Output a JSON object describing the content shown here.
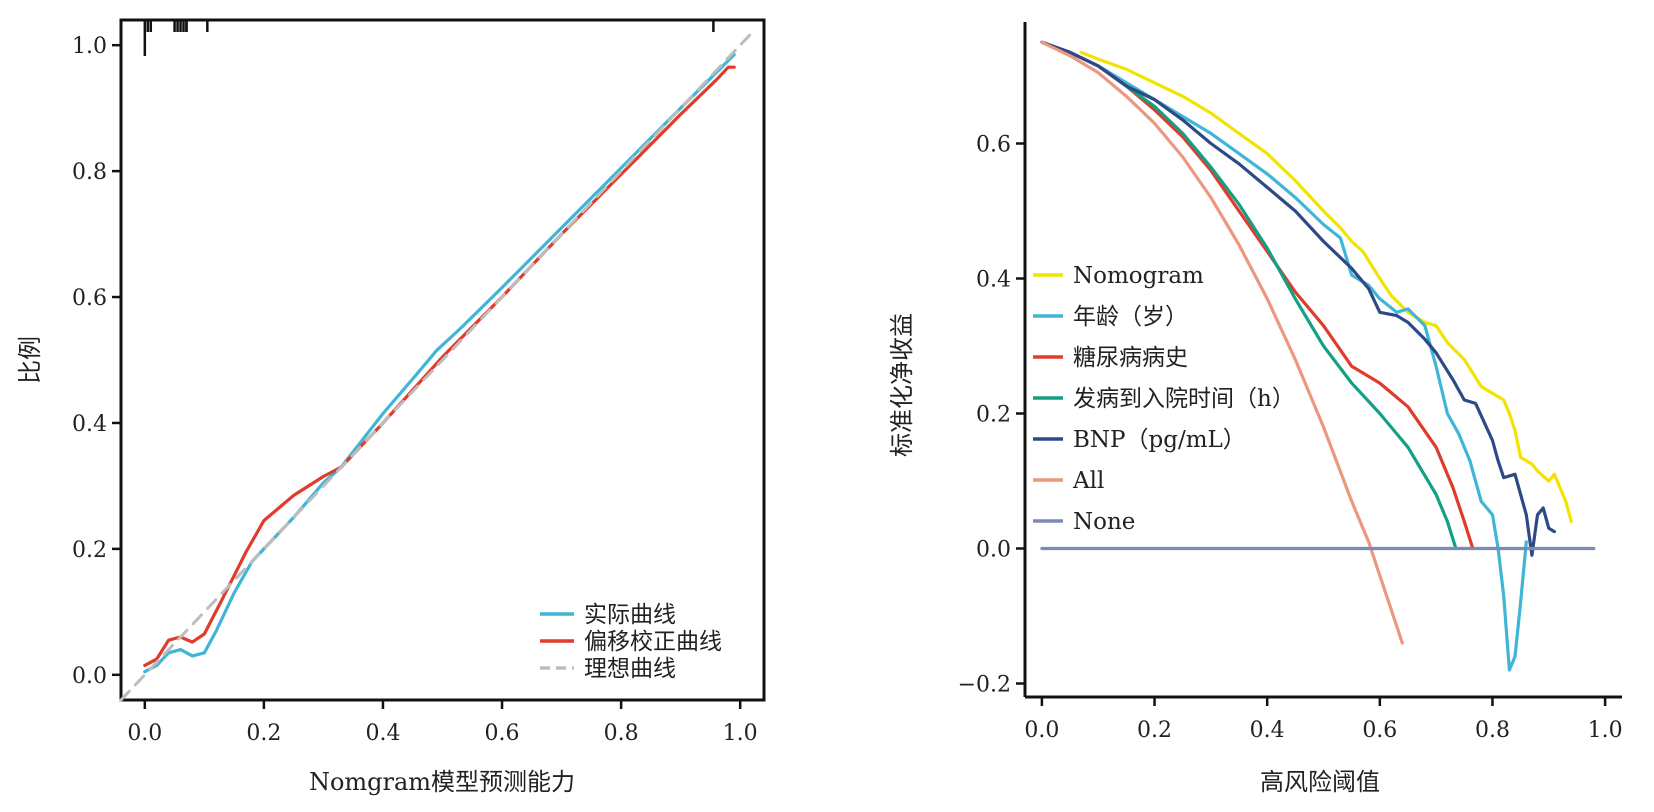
{
  "chart_data": [
    {
      "type": "line",
      "id": "calibration",
      "xlabel": "Nomgram模型预测能力",
      "ylabel": "比例",
      "xlim": [
        -0.04,
        1.04
      ],
      "ylim": [
        -0.04,
        1.04
      ],
      "xticks": [
        "0.0",
        "0.2",
        "0.4",
        "0.6",
        "0.8",
        "1.0"
      ],
      "xtick_values": [
        0,
        0.2,
        0.4,
        0.6,
        0.8,
        1.0
      ],
      "yticks": [
        "0.0",
        "0.2",
        "0.4",
        "0.6",
        "0.8",
        "1.0"
      ],
      "ytick_values": [
        0,
        0.2,
        0.4,
        0.6,
        0.8,
        1.0
      ],
      "frame": "box",
      "rug_x": [
        0.0,
        0.005,
        0.01,
        0.05,
        0.055,
        0.06,
        0.065,
        0.07,
        0.07,
        0.105,
        0.955
      ],
      "legend_position": "bottom-right",
      "series": [
        {
          "name": "实际曲线",
          "color": "#3fb6d6",
          "x": [
            0.0,
            0.02,
            0.04,
            0.06,
            0.08,
            0.1,
            0.12,
            0.15,
            0.18,
            0.21,
            0.25,
            0.3,
            0.33,
            0.4,
            0.45,
            0.49,
            0.53,
            0.6,
            0.7,
            0.8,
            0.9,
            0.99
          ],
          "y": [
            0.005,
            0.015,
            0.035,
            0.04,
            0.03,
            0.035,
            0.07,
            0.13,
            0.18,
            0.21,
            0.25,
            0.305,
            0.33,
            0.415,
            0.47,
            0.515,
            0.55,
            0.615,
            0.71,
            0.805,
            0.9,
            0.985
          ]
        },
        {
          "name": "偏移校正曲线",
          "color": "#e03c2c",
          "x": [
            0.0,
            0.02,
            0.04,
            0.06,
            0.08,
            0.1,
            0.13,
            0.17,
            0.2,
            0.25,
            0.3,
            0.33,
            0.4,
            0.5,
            0.6,
            0.7,
            0.8,
            0.9,
            0.96,
            0.98,
            0.99
          ],
          "y": [
            0.015,
            0.025,
            0.055,
            0.06,
            0.052,
            0.065,
            0.12,
            0.195,
            0.245,
            0.285,
            0.315,
            0.33,
            0.4,
            0.505,
            0.6,
            0.7,
            0.795,
            0.89,
            0.945,
            0.965,
            0.965
          ]
        },
        {
          "name": "理想曲线",
          "color": "#bdbdbd",
          "dashed": true,
          "x": [
            -0.04,
            1.02
          ],
          "y": [
            -0.04,
            1.02
          ]
        }
      ]
    },
    {
      "type": "line",
      "id": "decision_curve",
      "xlabel": "高风险阈值",
      "ylabel": "标准化净收益",
      "xlim": [
        -0.03,
        1.03
      ],
      "ylim": [
        -0.22,
        0.78
      ],
      "xticks": [
        "0.0",
        "0.2",
        "0.4",
        "0.6",
        "0.8",
        "1.0"
      ],
      "xtick_values": [
        0,
        0.2,
        0.4,
        0.6,
        0.8,
        1.0
      ],
      "yticks": [
        "−0.2",
        "0.0",
        "0.2",
        "0.4",
        "0.6"
      ],
      "ytick_values": [
        -0.2,
        0.0,
        0.2,
        0.4,
        0.6
      ],
      "frame": "L",
      "legend_position": "center-left",
      "series": [
        {
          "name": "Nomogram",
          "color": "#f2e400",
          "x": [
            0.07,
            0.1,
            0.15,
            0.2,
            0.25,
            0.3,
            0.35,
            0.4,
            0.45,
            0.5,
            0.53,
            0.55,
            0.57,
            0.6,
            0.62,
            0.65,
            0.68,
            0.7,
            0.72,
            0.75,
            0.78,
            0.8,
            0.82,
            0.83,
            0.84,
            0.85,
            0.86,
            0.87,
            0.88,
            0.9,
            0.91,
            0.93,
            0.94
          ],
          "y": [
            0.735,
            0.725,
            0.71,
            0.69,
            0.67,
            0.645,
            0.615,
            0.585,
            0.545,
            0.5,
            0.475,
            0.455,
            0.44,
            0.4,
            0.375,
            0.35,
            0.335,
            0.33,
            0.305,
            0.28,
            0.24,
            0.23,
            0.22,
            0.2,
            0.175,
            0.135,
            0.13,
            0.125,
            0.115,
            0.1,
            0.11,
            0.07,
            0.04
          ]
        },
        {
          "name": "年龄（岁）",
          "color": "#3fb6d6",
          "x": [
            0.0,
            0.05,
            0.1,
            0.15,
            0.2,
            0.25,
            0.3,
            0.35,
            0.4,
            0.45,
            0.5,
            0.53,
            0.55,
            0.58,
            0.6,
            0.63,
            0.65,
            0.68,
            0.7,
            0.72,
            0.74,
            0.76,
            0.78,
            0.8,
            0.81,
            0.82,
            0.83,
            0.84,
            0.85,
            0.86
          ],
          "y": [
            0.75,
            0.735,
            0.715,
            0.69,
            0.665,
            0.64,
            0.615,
            0.585,
            0.555,
            0.52,
            0.48,
            0.46,
            0.405,
            0.39,
            0.37,
            0.35,
            0.355,
            0.33,
            0.27,
            0.2,
            0.17,
            0.13,
            0.07,
            0.05,
            0.0,
            -0.07,
            -0.18,
            -0.16,
            -0.08,
            0.01
          ]
        },
        {
          "name": "糖尿病病史",
          "color": "#e03c2c",
          "x": [
            0.0,
            0.05,
            0.1,
            0.15,
            0.2,
            0.25,
            0.3,
            0.35,
            0.4,
            0.45,
            0.5,
            0.55,
            0.6,
            0.65,
            0.7,
            0.73,
            0.75,
            0.765
          ],
          "y": [
            0.75,
            0.735,
            0.715,
            0.685,
            0.65,
            0.61,
            0.56,
            0.5,
            0.44,
            0.38,
            0.33,
            0.27,
            0.245,
            0.21,
            0.15,
            0.09,
            0.04,
            0.0
          ]
        },
        {
          "name": "发病到入院时间（h）",
          "color": "#13a084",
          "x": [
            0.0,
            0.05,
            0.1,
            0.15,
            0.2,
            0.25,
            0.3,
            0.35,
            0.4,
            0.45,
            0.5,
            0.55,
            0.6,
            0.65,
            0.7,
            0.72,
            0.735
          ],
          "y": [
            0.75,
            0.735,
            0.715,
            0.685,
            0.655,
            0.615,
            0.565,
            0.51,
            0.445,
            0.37,
            0.3,
            0.245,
            0.2,
            0.15,
            0.08,
            0.04,
            0.0
          ]
        },
        {
          "name": "BNP（pg/mL）",
          "color": "#2e4a86",
          "x": [
            0.0,
            0.05,
            0.1,
            0.15,
            0.2,
            0.25,
            0.3,
            0.35,
            0.4,
            0.45,
            0.5,
            0.55,
            0.58,
            0.6,
            0.63,
            0.65,
            0.68,
            0.7,
            0.73,
            0.75,
            0.77,
            0.8,
            0.81,
            0.82,
            0.84,
            0.86,
            0.87,
            0.88,
            0.89,
            0.9,
            0.91
          ],
          "y": [
            0.75,
            0.735,
            0.715,
            0.685,
            0.665,
            0.635,
            0.6,
            0.57,
            0.535,
            0.5,
            0.455,
            0.415,
            0.385,
            0.35,
            0.345,
            0.335,
            0.31,
            0.29,
            0.25,
            0.22,
            0.215,
            0.16,
            0.13,
            0.105,
            0.11,
            0.05,
            -0.01,
            0.05,
            0.06,
            0.03,
            0.025
          ]
        },
        {
          "name": "All",
          "color": "#ec977f",
          "x": [
            0.0,
            0.05,
            0.1,
            0.15,
            0.2,
            0.25,
            0.3,
            0.35,
            0.4,
            0.45,
            0.5,
            0.55,
            0.58,
            0.6,
            0.62,
            0.64
          ],
          "y": [
            0.75,
            0.73,
            0.705,
            0.67,
            0.63,
            0.58,
            0.52,
            0.45,
            0.37,
            0.28,
            0.18,
            0.07,
            0.01,
            -0.04,
            -0.09,
            -0.14
          ]
        },
        {
          "name": "None",
          "color": "#7c8ab8",
          "x": [
            0.0,
            0.98
          ],
          "y": [
            0.0,
            0.0
          ]
        }
      ]
    }
  ]
}
